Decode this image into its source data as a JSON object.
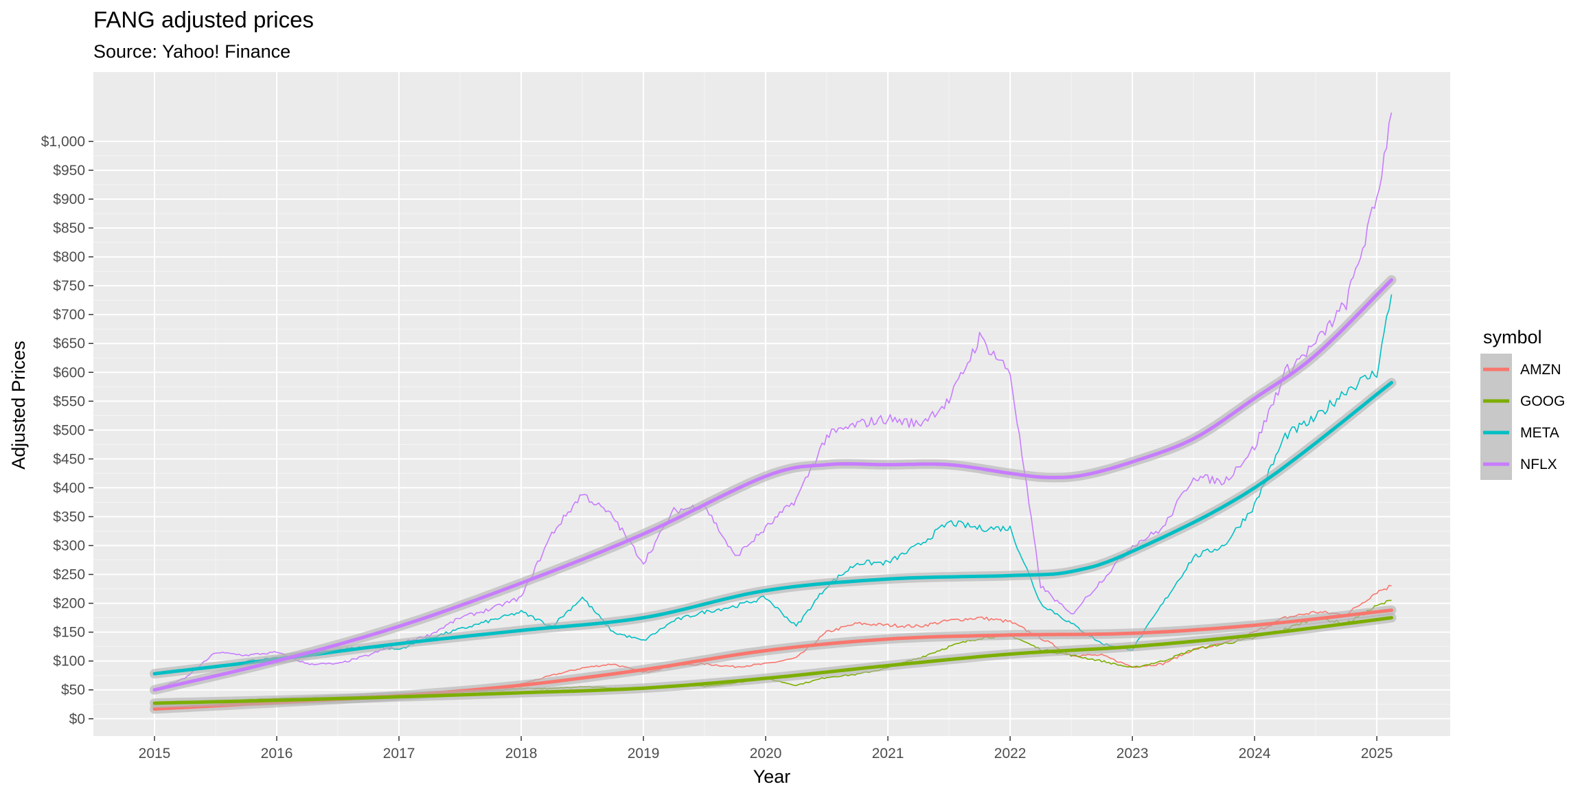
{
  "chart_data": {
    "type": "line",
    "title": "FANG adjusted prices",
    "subtitle": "Source: Yahoo! Finance",
    "xlabel": "Year",
    "ylabel": "Adjusted Prices",
    "xlim": [
      2014.5,
      2025.6
    ],
    "ylim": [
      -30,
      1120
    ],
    "x_ticks": [
      2015,
      2016,
      2017,
      2018,
      2019,
      2020,
      2021,
      2022,
      2023,
      2024,
      2025
    ],
    "x_tick_labels": [
      "2015",
      "2016",
      "2017",
      "2018",
      "2019",
      "2020",
      "2021",
      "2022",
      "2023",
      "2024",
      "2025"
    ],
    "y_ticks": [
      0,
      50,
      100,
      150,
      200,
      250,
      300,
      350,
      400,
      450,
      500,
      550,
      600,
      650,
      700,
      750,
      800,
      850,
      900,
      950,
      1000
    ],
    "y_tick_labels": [
      "$0",
      "$50",
      "$100",
      "$150",
      "$200",
      "$250",
      "$300",
      "$350",
      "$400",
      "$450",
      "$500",
      "$550",
      "$600",
      "$650",
      "$700",
      "$750",
      "$800",
      "$850",
      "$900",
      "$950",
      "$1,000"
    ],
    "grid": true,
    "background": "#ebebeb",
    "legend": {
      "title": "symbol",
      "position": "right"
    },
    "series": [
      {
        "name": "AMZN",
        "color": "#F8766D",
        "x": [
          2015.0,
          2015.25,
          2015.5,
          2015.75,
          2016.0,
          2016.25,
          2016.5,
          2016.75,
          2017.0,
          2017.25,
          2017.5,
          2017.75,
          2018.0,
          2018.25,
          2018.5,
          2018.75,
          2019.0,
          2019.25,
          2019.5,
          2019.75,
          2020.0,
          2020.25,
          2020.5,
          2020.75,
          2021.0,
          2021.25,
          2021.5,
          2021.75,
          2022.0,
          2022.25,
          2022.5,
          2022.75,
          2023.0,
          2023.25,
          2023.5,
          2023.75,
          2024.0,
          2024.25,
          2024.5,
          2024.75,
          2025.0,
          2025.12
        ],
        "values": [
          15,
          19,
          24,
          31,
          33,
          30,
          37,
          40,
          40,
          45,
          50,
          52,
          60,
          75,
          88,
          95,
          80,
          92,
          95,
          90,
          95,
          105,
          150,
          165,
          162,
          160,
          170,
          175,
          168,
          140,
          110,
          110,
          90,
          95,
          120,
          130,
          150,
          175,
          185,
          180,
          220,
          230
        ]
      },
      {
        "name": "GOOG",
        "color": "#7CAE00",
        "x": [
          2015.0,
          2015.25,
          2015.5,
          2015.75,
          2016.0,
          2016.25,
          2016.5,
          2016.75,
          2017.0,
          2017.25,
          2017.5,
          2017.75,
          2018.0,
          2018.25,
          2018.5,
          2018.75,
          2019.0,
          2019.25,
          2019.5,
          2019.75,
          2020.0,
          2020.25,
          2020.5,
          2020.75,
          2021.0,
          2021.25,
          2021.5,
          2021.75,
          2022.0,
          2022.25,
          2022.5,
          2022.75,
          2023.0,
          2023.25,
          2023.5,
          2023.75,
          2024.0,
          2024.25,
          2024.5,
          2024.75,
          2025.0,
          2025.12
        ],
        "values": [
          26,
          27,
          30,
          33,
          35,
          36,
          37,
          38,
          40,
          44,
          46,
          48,
          53,
          52,
          56,
          53,
          52,
          58,
          56,
          62,
          70,
          58,
          72,
          77,
          88,
          105,
          125,
          140,
          145,
          120,
          110,
          100,
          88,
          100,
          120,
          130,
          140,
          155,
          175,
          165,
          195,
          205
        ]
      },
      {
        "name": "META",
        "color": "#00BFC4",
        "x": [
          2015.0,
          2015.25,
          2015.5,
          2015.75,
          2016.0,
          2016.25,
          2016.5,
          2016.75,
          2017.0,
          2017.25,
          2017.5,
          2017.75,
          2018.0,
          2018.25,
          2018.5,
          2018.75,
          2019.0,
          2019.25,
          2019.5,
          2019.75,
          2020.0,
          2020.25,
          2020.5,
          2020.75,
          2021.0,
          2021.25,
          2021.5,
          2021.75,
          2022.0,
          2022.25,
          2022.5,
          2022.75,
          2023.0,
          2023.25,
          2023.5,
          2023.75,
          2024.0,
          2024.25,
          2024.5,
          2024.75,
          2025.0,
          2025.12
        ],
        "values": [
          78,
          82,
          90,
          100,
          105,
          112,
          120,
          125,
          120,
          140,
          155,
          170,
          185,
          160,
          210,
          150,
          135,
          170,
          185,
          195,
          210,
          160,
          230,
          270,
          270,
          300,
          340,
          330,
          330,
          200,
          165,
          130,
          120,
          200,
          280,
          300,
          370,
          490,
          520,
          570,
          600,
          735
        ]
      },
      {
        "name": "NFLX",
        "color": "#C77CFF",
        "x": [
          2015.0,
          2015.25,
          2015.5,
          2015.75,
          2016.0,
          2016.25,
          2016.5,
          2016.75,
          2017.0,
          2017.25,
          2017.5,
          2017.75,
          2018.0,
          2018.25,
          2018.5,
          2018.75,
          2019.0,
          2019.25,
          2019.5,
          2019.75,
          2020.0,
          2020.25,
          2020.5,
          2020.75,
          2021.0,
          2021.25,
          2021.5,
          2021.75,
          2022.0,
          2022.25,
          2022.5,
          2022.75,
          2023.0,
          2023.25,
          2023.5,
          2023.75,
          2024.0,
          2024.25,
          2024.5,
          2024.75,
          2025.0,
          2025.12
        ],
        "values": [
          50,
          70,
          115,
          110,
          115,
          95,
          95,
          110,
          130,
          145,
          175,
          190,
          210,
          320,
          390,
          350,
          270,
          360,
          370,
          280,
          330,
          380,
          490,
          510,
          520,
          510,
          550,
          660,
          600,
          230,
          180,
          240,
          300,
          330,
          420,
          410,
          470,
          600,
          650,
          720,
          900,
          1050
        ]
      }
    ],
    "trend_lines": [
      {
        "name": "AMZN",
        "color": "#F8766D",
        "x": [
          2015.0,
          2016.0,
          2017.0,
          2018.0,
          2019.0,
          2020.0,
          2021.0,
          2022.0,
          2023.0,
          2024.0,
          2025.12
        ],
        "values": [
          17,
          28,
          40,
          58,
          85,
          118,
          138,
          145,
          148,
          162,
          188
        ]
      },
      {
        "name": "GOOG",
        "color": "#7CAE00",
        "x": [
          2015.0,
          2016.0,
          2017.0,
          2018.0,
          2019.0,
          2020.0,
          2021.0,
          2022.0,
          2023.0,
          2024.0,
          2025.12
        ],
        "values": [
          27,
          32,
          38,
          45,
          53,
          70,
          92,
          112,
          125,
          145,
          175
        ]
      },
      {
        "name": "META",
        "color": "#00BFC4",
        "x": [
          2015.0,
          2016.0,
          2017.0,
          2018.0,
          2019.0,
          2020.0,
          2021.0,
          2022.0,
          2022.5,
          2023.0,
          2024.0,
          2025.12
        ],
        "values": [
          78,
          103,
          130,
          153,
          175,
          222,
          242,
          248,
          255,
          290,
          400,
          582
        ]
      },
      {
        "name": "NFLX",
        "color": "#C77CFF",
        "x": [
          2015.0,
          2016.0,
          2017.0,
          2018.0,
          2019.0,
          2020.0,
          2020.5,
          2021.0,
          2021.5,
          2022.0,
          2022.3,
          2022.6,
          2023.0,
          2023.5,
          2024.0,
          2024.5,
          2025.12
        ],
        "values": [
          50,
          100,
          160,
          235,
          320,
          420,
          440,
          440,
          440,
          425,
          418,
          422,
          445,
          485,
          555,
          630,
          760
        ]
      }
    ]
  }
}
